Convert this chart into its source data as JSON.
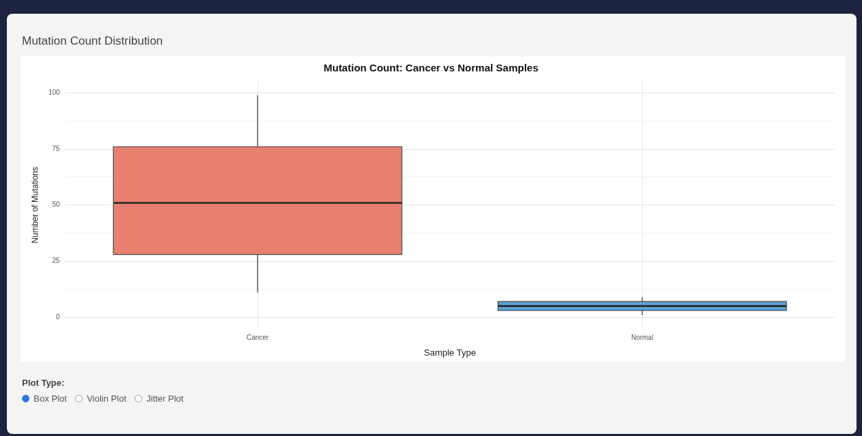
{
  "chart_data": {
    "type": "box",
    "subtitle": "Mutation Count Distribution",
    "title": "Mutation Count: Cancer vs Normal Samples",
    "xlabel": "Sample Type",
    "ylabel": "Number of Mutations",
    "categories": [
      "Cancer",
      "Normal"
    ],
    "boxes": [
      {
        "low": 11,
        "q1": 28,
        "median": 51,
        "q3": 76,
        "high": 99
      },
      {
        "low": 1,
        "q1": 3,
        "median": 5,
        "q3": 7,
        "high": 9
      }
    ],
    "colors": [
      "#e8806f",
      "#5c9fd1"
    ],
    "ylim": [
      -5,
      105
    ],
    "yticks": [
      0,
      {
        "value": 12.5,
        "label": null
      },
      25,
      {
        "value": 37.5,
        "label": null
      },
      50,
      {
        "value": 62.5,
        "label": null
      },
      75,
      {
        "value": 87.5,
        "label": null
      },
      100
    ],
    "grid": true,
    "annotations": [
      "Plot Type:",
      "Box Plot",
      "Violin Plot",
      "Jitter Plot"
    ]
  }
}
